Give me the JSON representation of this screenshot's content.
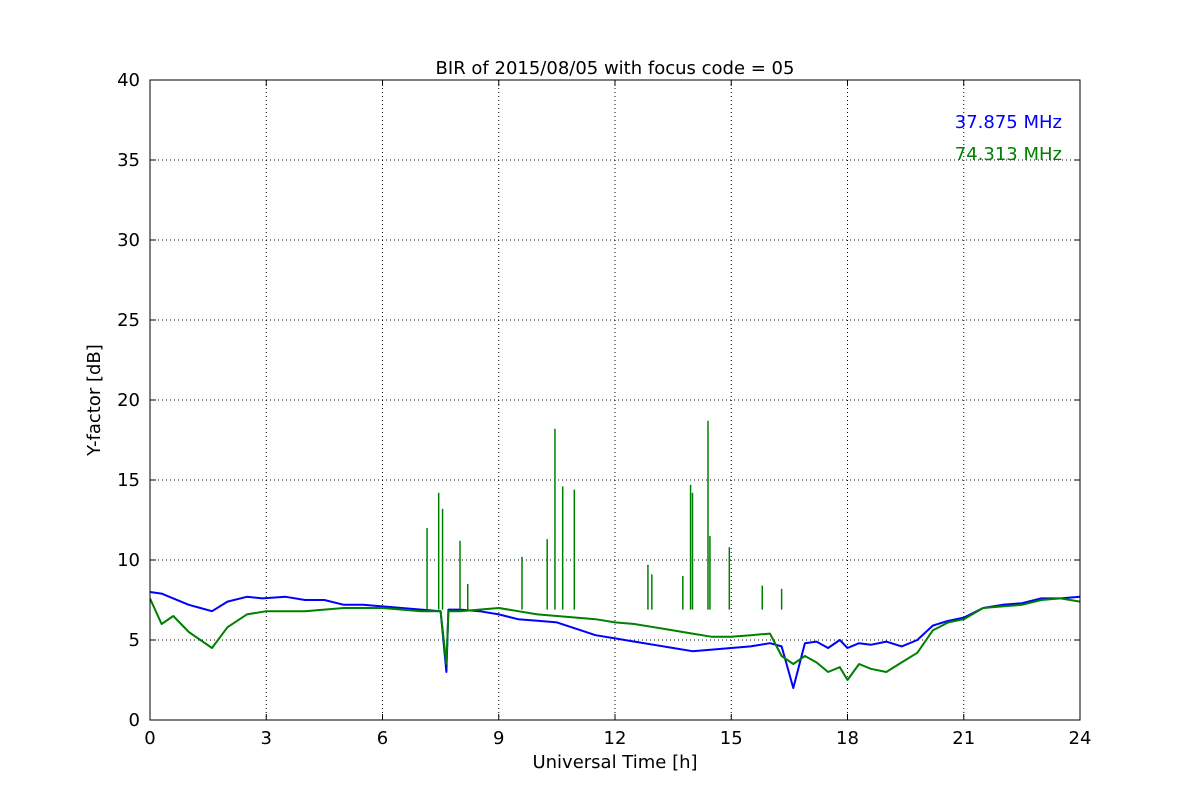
{
  "chart_data": {
    "type": "line",
    "title": "BIR of 2015/08/05 with focus code = 05",
    "xlabel": "Universal Time [h]",
    "ylabel": "Y-factor [dB]",
    "xlim": [
      0,
      24
    ],
    "ylim": [
      0,
      40
    ],
    "xticks": [
      0,
      3,
      6,
      9,
      12,
      15,
      18,
      21,
      24
    ],
    "yticks": [
      0,
      5,
      10,
      15,
      20,
      25,
      30,
      35,
      40
    ],
    "grid": true,
    "legend_placement": "top-right",
    "series": [
      {
        "name": "37.875 MHz",
        "color": "#0000ff",
        "x": [
          0,
          0.3,
          0.6,
          1.0,
          1.3,
          1.6,
          2.0,
          2.5,
          2.9,
          3.5,
          4.0,
          4.5,
          5.0,
          5.5,
          6.0,
          6.5,
          7.0,
          7.5,
          7.65,
          7.7,
          8.0,
          8.5,
          9.0,
          9.5,
          10.0,
          10.5,
          11.0,
          11.5,
          12.0,
          12.5,
          13.0,
          13.5,
          14.0,
          14.5,
          15.0,
          15.5,
          16.0,
          16.3,
          16.6,
          16.9,
          17.2,
          17.5,
          17.8,
          18.0,
          18.3,
          18.6,
          19.0,
          19.4,
          19.8,
          20.2,
          20.6,
          21.0,
          21.5,
          22.0,
          22.5,
          23.0,
          23.5,
          24.0
        ],
        "y": [
          8.0,
          7.9,
          7.6,
          7.2,
          7.0,
          6.8,
          7.4,
          7.7,
          7.6,
          7.7,
          7.5,
          7.5,
          7.2,
          7.2,
          7.1,
          7.0,
          6.9,
          6.8,
          3.0,
          6.9,
          6.9,
          6.8,
          6.6,
          6.3,
          6.2,
          6.1,
          5.7,
          5.3,
          5.1,
          4.9,
          4.7,
          4.5,
          4.3,
          4.4,
          4.5,
          4.6,
          4.8,
          4.6,
          2.0,
          4.8,
          4.9,
          4.5,
          5.0,
          4.5,
          4.8,
          4.7,
          4.9,
          4.6,
          5.0,
          5.9,
          6.2,
          6.4,
          7.0,
          7.2,
          7.3,
          7.6,
          7.6,
          7.7
        ]
      },
      {
        "name": "74.313 MHz",
        "color": "#008000",
        "x": [
          0,
          0.3,
          0.6,
          1.0,
          1.3,
          1.6,
          2.0,
          2.5,
          3.0,
          3.5,
          4.0,
          4.5,
          5.0,
          5.5,
          6.0,
          6.5,
          7.0,
          7.5,
          7.65,
          7.7,
          8.0,
          8.5,
          9.0,
          9.5,
          10.0,
          10.5,
          11.0,
          11.5,
          12.0,
          12.5,
          13.0,
          13.5,
          14.0,
          14.5,
          15.0,
          15.5,
          16.0,
          16.3,
          16.6,
          16.9,
          17.2,
          17.5,
          17.8,
          18.0,
          18.3,
          18.6,
          19.0,
          19.4,
          19.8,
          20.2,
          20.6,
          21.0,
          21.5,
          22.0,
          22.5,
          23.0,
          23.5,
          24.0
        ],
        "y": [
          7.6,
          6.0,
          6.5,
          5.5,
          5.0,
          4.5,
          5.8,
          6.6,
          6.8,
          6.8,
          6.8,
          6.9,
          7.0,
          7.0,
          7.0,
          6.9,
          6.8,
          6.8,
          3.5,
          6.8,
          6.8,
          6.9,
          7.0,
          6.8,
          6.6,
          6.5,
          6.4,
          6.3,
          6.1,
          6.0,
          5.8,
          5.6,
          5.4,
          5.2,
          5.2,
          5.3,
          5.4,
          4.0,
          3.5,
          4.0,
          3.6,
          3.0,
          3.3,
          2.5,
          3.5,
          3.2,
          3.0,
          3.6,
          4.2,
          5.6,
          6.1,
          6.3,
          7.0,
          7.1,
          7.2,
          7.5,
          7.6,
          7.4
        ]
      }
    ],
    "annotations_spikes": [
      {
        "series": "74.313 MHz",
        "x": 7.15,
        "y": 12.0
      },
      {
        "series": "74.313 MHz",
        "x": 7.45,
        "y": 14.2
      },
      {
        "series": "74.313 MHz",
        "x": 7.55,
        "y": 13.2
      },
      {
        "series": "74.313 MHz",
        "x": 8.0,
        "y": 11.2
      },
      {
        "series": "74.313 MHz",
        "x": 8.2,
        "y": 8.5
      },
      {
        "series": "74.313 MHz",
        "x": 9.6,
        "y": 10.2
      },
      {
        "series": "74.313 MHz",
        "x": 10.25,
        "y": 11.3
      },
      {
        "series": "74.313 MHz",
        "x": 10.45,
        "y": 18.2
      },
      {
        "series": "74.313 MHz",
        "x": 10.65,
        "y": 14.6
      },
      {
        "series": "74.313 MHz",
        "x": 10.95,
        "y": 14.4
      },
      {
        "series": "74.313 MHz",
        "x": 12.85,
        "y": 9.7
      },
      {
        "series": "74.313 MHz",
        "x": 12.95,
        "y": 9.1
      },
      {
        "series": "74.313 MHz",
        "x": 13.75,
        "y": 9.0
      },
      {
        "series": "74.313 MHz",
        "x": 13.95,
        "y": 14.7
      },
      {
        "series": "74.313 MHz",
        "x": 14.0,
        "y": 14.2
      },
      {
        "series": "74.313 MHz",
        "x": 14.4,
        "y": 18.7
      },
      {
        "series": "74.313 MHz",
        "x": 14.45,
        "y": 11.5
      },
      {
        "series": "74.313 MHz",
        "x": 14.95,
        "y": 10.8
      },
      {
        "series": "74.313 MHz",
        "x": 15.8,
        "y": 8.4
      },
      {
        "series": "74.313 MHz",
        "x": 16.3,
        "y": 8.2
      }
    ]
  }
}
